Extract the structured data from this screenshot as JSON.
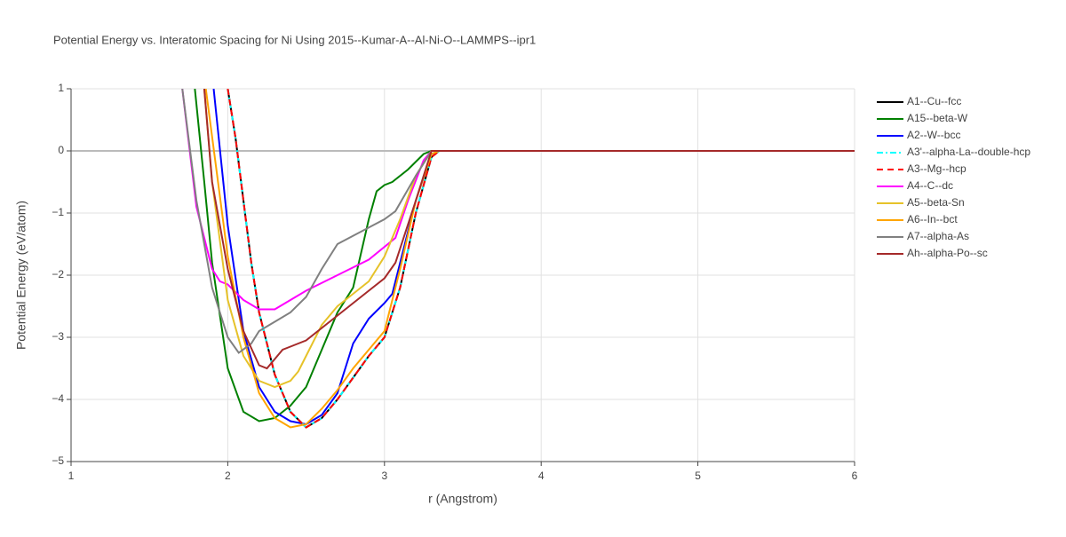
{
  "chart_data": {
    "type": "line",
    "title": "Potential Energy vs. Interatomic Spacing for Ni Using 2015--Kumar-A--Al-Ni-O--LAMMPS--ipr1",
    "x_label": "r (Angstrom)",
    "y_label": "Potential Energy (eV/atom)",
    "xlim": [
      1,
      6
    ],
    "ylim": [
      -5,
      1
    ],
    "xticks": [
      1,
      2,
      3,
      4,
      5,
      6
    ],
    "yticks": [
      {
        "value": -5,
        "label": "−5"
      },
      {
        "value": -4,
        "label": "−4"
      },
      {
        "value": -3,
        "label": "−3"
      },
      {
        "value": -2,
        "label": "−2"
      },
      {
        "value": -1,
        "label": "−1"
      },
      0,
      1
    ],
    "grid": true,
    "legend": "right",
    "series": [
      {
        "name": "A1--Cu--fcc",
        "color": "#000000",
        "dash": "solid",
        "x": [
          2.0,
          2.05,
          2.1,
          2.15,
          2.2,
          2.3,
          2.4,
          2.5,
          2.6,
          2.7,
          2.8,
          2.9,
          3.0,
          3.1,
          3.2,
          3.3,
          3.35,
          6
        ],
        "values": [
          1,
          0.2,
          -0.8,
          -1.8,
          -2.6,
          -3.6,
          -4.2,
          -4.45,
          -4.3,
          -4.0,
          -3.65,
          -3.3,
          -3.0,
          -2.2,
          -1.0,
          -0.1,
          0,
          0
        ]
      },
      {
        "name": "A15--beta-W",
        "color": "#008000",
        "dash": "solid",
        "x": [
          1.79,
          1.85,
          1.9,
          2.0,
          2.1,
          2.2,
          2.3,
          2.4,
          2.5,
          2.6,
          2.7,
          2.8,
          2.9,
          2.95,
          3.0,
          3.05,
          3.15,
          3.25,
          3.3,
          6
        ],
        "values": [
          1,
          -0.5,
          -1.8,
          -3.5,
          -4.2,
          -4.35,
          -4.3,
          -4.1,
          -3.8,
          -3.2,
          -2.6,
          -2.2,
          -1.1,
          -0.65,
          -0.55,
          -0.5,
          -0.3,
          -0.05,
          0,
          0
        ]
      },
      {
        "name": "A2--W--bcc",
        "color": "#0000ff",
        "dash": "solid",
        "x": [
          1.91,
          2.0,
          2.1,
          2.2,
          2.3,
          2.4,
          2.5,
          2.6,
          2.7,
          2.8,
          2.9,
          3.0,
          3.05,
          3.1,
          3.2,
          3.3,
          3.35,
          6
        ],
        "values": [
          1,
          -1.2,
          -2.9,
          -3.8,
          -4.2,
          -4.35,
          -4.4,
          -4.25,
          -3.9,
          -3.1,
          -2.7,
          -2.45,
          -2.3,
          -1.8,
          -0.8,
          -0.05,
          0,
          0
        ]
      },
      {
        "name": "A3'--alpha-La--double-hcp",
        "color": "#00ffff",
        "dash": "dashdot",
        "x": [
          2.0,
          2.05,
          2.1,
          2.15,
          2.2,
          2.3,
          2.4,
          2.5,
          2.6,
          2.7,
          2.8,
          2.9,
          3.0,
          3.1,
          3.2,
          3.3,
          3.35,
          6
        ],
        "values": [
          1,
          0.2,
          -0.8,
          -1.8,
          -2.6,
          -3.6,
          -4.2,
          -4.45,
          -4.3,
          -4.0,
          -3.65,
          -3.3,
          -3.0,
          -2.2,
          -1.0,
          -0.1,
          0,
          0
        ]
      },
      {
        "name": "A3--Mg--hcp",
        "color": "#ff0000",
        "dash": "dash",
        "x": [
          2.0,
          2.05,
          2.1,
          2.15,
          2.2,
          2.3,
          2.4,
          2.5,
          2.6,
          2.7,
          2.8,
          2.9,
          3.0,
          3.1,
          3.2,
          3.3,
          3.35,
          6
        ],
        "values": [
          1,
          0.2,
          -0.8,
          -1.8,
          -2.6,
          -3.6,
          -4.2,
          -4.45,
          -4.3,
          -4.0,
          -3.65,
          -3.3,
          -3.0,
          -2.2,
          -1.0,
          -0.1,
          0,
          0
        ]
      },
      {
        "name": "A4--C--dc",
        "color": "#ff00ff",
        "dash": "solid",
        "x": [
          1.71,
          1.8,
          1.9,
          1.95,
          2.0,
          2.1,
          2.2,
          2.3,
          2.4,
          2.5,
          2.7,
          2.9,
          3.07,
          3.15,
          3.25,
          3.3,
          6
        ],
        "values": [
          1,
          -0.9,
          -1.9,
          -2.1,
          -2.15,
          -2.4,
          -2.55,
          -2.55,
          -2.4,
          -2.25,
          -2.0,
          -1.75,
          -1.4,
          -0.8,
          -0.15,
          0,
          0
        ]
      },
      {
        "name": "A5--beta-Sn",
        "color": "#e6c229",
        "dash": "solid",
        "x": [
          1.85,
          1.9,
          2.0,
          2.1,
          2.2,
          2.3,
          2.4,
          2.45,
          2.5,
          2.6,
          2.7,
          2.9,
          3.0,
          3.1,
          3.2,
          3.3,
          6
        ],
        "values": [
          1,
          -0.5,
          -2.4,
          -3.3,
          -3.7,
          -3.8,
          -3.7,
          -3.55,
          -3.3,
          -2.8,
          -2.5,
          -2.1,
          -1.7,
          -1.1,
          -0.4,
          0,
          0
        ]
      },
      {
        "name": "A6--In--bct",
        "color": "#ffa500",
        "dash": "solid",
        "x": [
          1.86,
          2.0,
          2.1,
          2.2,
          2.3,
          2.4,
          2.5,
          2.6,
          2.7,
          2.8,
          2.9,
          3.0,
          3.1,
          3.2,
          3.3,
          3.35,
          6
        ],
        "values": [
          1,
          -1.7,
          -3.0,
          -3.9,
          -4.3,
          -4.45,
          -4.4,
          -4.15,
          -3.85,
          -3.5,
          -3.2,
          -2.9,
          -1.9,
          -0.8,
          -0.05,
          0,
          0
        ]
      },
      {
        "name": "A7--alpha-As",
        "color": "#808080",
        "dash": "solid",
        "x": [
          1.71,
          1.8,
          1.9,
          2.0,
          2.07,
          2.15,
          2.2,
          2.3,
          2.4,
          2.5,
          2.6,
          2.7,
          2.85,
          3.0,
          3.07,
          3.2,
          3.3,
          6
        ],
        "values": [
          1,
          -0.8,
          -2.2,
          -3.0,
          -3.25,
          -3.1,
          -2.9,
          -2.75,
          -2.6,
          -2.35,
          -1.9,
          -1.5,
          -1.3,
          -1.1,
          -0.97,
          -0.4,
          0,
          0
        ]
      },
      {
        "name": "Ah--alpha-Po--sc",
        "color": "#a52a2a",
        "dash": "solid",
        "x": [
          1.85,
          1.9,
          2.0,
          2.1,
          2.2,
          2.25,
          2.3,
          2.35,
          2.4,
          2.5,
          2.7,
          2.9,
          3.0,
          3.07,
          3.2,
          3.3,
          6
        ],
        "values": [
          1,
          -0.5,
          -1.9,
          -2.9,
          -3.45,
          -3.5,
          -3.35,
          -3.2,
          -3.15,
          -3.05,
          -2.65,
          -2.25,
          -2.05,
          -1.8,
          -0.8,
          0,
          0
        ]
      }
    ]
  }
}
